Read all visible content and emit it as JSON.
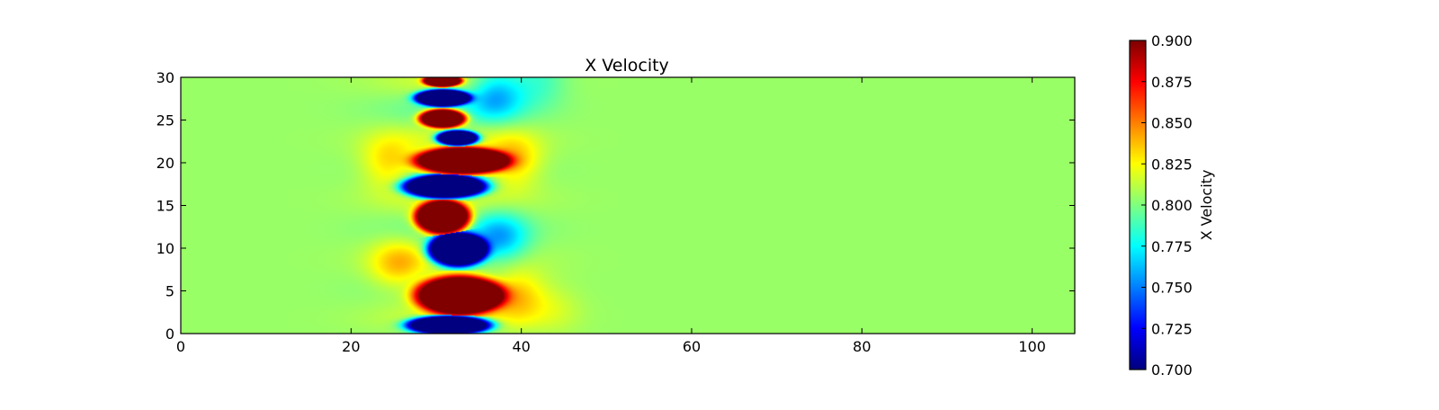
{
  "chart_data": {
    "type": "heatmap",
    "title": "X Velocity",
    "xlabel": "",
    "ylabel": "",
    "xlim": [
      0,
      105
    ],
    "ylim": [
      0,
      30
    ],
    "xticks": [
      "0",
      "20",
      "40",
      "60",
      "80",
      "100"
    ],
    "yticks": [
      "0",
      "5",
      "10",
      "15",
      "20",
      "25",
      "30"
    ],
    "colormap": "jet",
    "colorbar": {
      "label": "X Velocity",
      "range": [
        0.7,
        0.9
      ],
      "ticks": [
        "0.700",
        "0.725",
        "0.750",
        "0.775",
        "0.800",
        "0.825",
        "0.850",
        "0.875",
        "0.900"
      ]
    },
    "background_value": 0.805,
    "blobs": [
      {
        "x0": 26.5,
        "x1": 36.5,
        "y": 1.0,
        "ry": 1.1,
        "value": 0.7
      },
      {
        "x0": 27.5,
        "x1": 38.0,
        "y": 4.5,
        "ry": 2.3,
        "value": 0.9
      },
      {
        "x0": 29.0,
        "x1": 36.0,
        "y": 9.8,
        "ry": 2.0,
        "value": 0.7
      },
      {
        "x0": 27.5,
        "x1": 34.0,
        "y": 13.6,
        "ry": 2.0,
        "value": 0.9
      },
      {
        "x0": 26.0,
        "x1": 36.0,
        "y": 17.2,
        "ry": 1.4,
        "value": 0.7
      },
      {
        "x0": 27.5,
        "x1": 38.5,
        "y": 20.2,
        "ry": 1.6,
        "value": 0.9
      },
      {
        "x0": 30.0,
        "x1": 35.0,
        "y": 22.9,
        "ry": 0.9,
        "value": 0.7
      },
      {
        "x0": 28.0,
        "x1": 33.5,
        "y": 25.2,
        "ry": 1.1,
        "value": 0.9
      },
      {
        "x0": 27.5,
        "x1": 34.0,
        "y": 27.6,
        "ry": 1.0,
        "value": 0.7
      },
      {
        "x0": 28.5,
        "x1": 33.0,
        "y": 29.6,
        "ry": 0.7,
        "value": 0.9
      }
    ],
    "wake_bands": [
      {
        "x": 39.5,
        "y": 4.5,
        "value": 0.84
      },
      {
        "x": 37.5,
        "y": 11.0,
        "value": 0.76
      },
      {
        "x": 39.0,
        "y": 20.2,
        "value": 0.84
      },
      {
        "x": 37.0,
        "y": 28.0,
        "value": 0.76
      },
      {
        "x": 25.5,
        "y": 8.0,
        "value": 0.835
      },
      {
        "x": 24.5,
        "y": 20.0,
        "value": 0.835
      },
      {
        "x": 42.0,
        "y": 29.5,
        "value": 0.785
      },
      {
        "x": 44.0,
        "y": 3.0,
        "value": 0.815
      }
    ]
  }
}
